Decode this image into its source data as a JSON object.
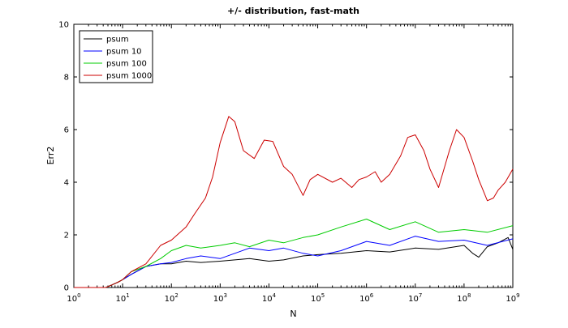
{
  "chart_data": {
    "type": "line",
    "title": "+/- distribution, fast-math",
    "xlabel": "N",
    "ylabel": "Err2",
    "x_scale": "log10",
    "xlim": [
      1,
      1000000000
    ],
    "ylim": [
      0,
      10
    ],
    "yticks": [
      "0",
      "2",
      "4",
      "6",
      "8",
      "10"
    ],
    "xticks": [
      {
        "base": "10",
        "exp": "0"
      },
      {
        "base": "10",
        "exp": "1"
      },
      {
        "base": "10",
        "exp": "2"
      },
      {
        "base": "10",
        "exp": "3"
      },
      {
        "base": "10",
        "exp": "4"
      },
      {
        "base": "10",
        "exp": "5"
      },
      {
        "base": "10",
        "exp": "6"
      },
      {
        "base": "10",
        "exp": "7"
      },
      {
        "base": "10",
        "exp": "8"
      },
      {
        "base": "10",
        "exp": "9"
      }
    ],
    "grid": false,
    "legend_position": "top-left",
    "series": [
      {
        "name": "psum",
        "color": "#000000",
        "x": [
          1,
          4.5,
          6,
          8,
          10,
          15,
          30,
          60,
          100,
          200,
          400,
          1000,
          2000,
          4000,
          10000,
          20000,
          50000,
          100000,
          300000,
          1000000,
          3000000,
          10000000,
          30000000,
          100000000,
          150000000,
          200000000,
          300000000,
          500000000,
          800000000,
          1000000000
        ],
        "y": [
          0,
          0,
          0.1,
          0.2,
          0.3,
          0.5,
          0.8,
          0.9,
          0.9,
          1.0,
          0.95,
          1.0,
          1.05,
          1.1,
          1.0,
          1.05,
          1.2,
          1.25,
          1.3,
          1.4,
          1.35,
          1.5,
          1.45,
          1.6,
          1.3,
          1.15,
          1.55,
          1.7,
          1.9,
          1.45
        ]
      },
      {
        "name": "psum 10",
        "color": "#0000ff",
        "x": [
          1,
          4.5,
          6,
          8,
          10,
          15,
          30,
          60,
          100,
          200,
          400,
          1000,
          2000,
          4000,
          10000,
          20000,
          50000,
          100000,
          300000,
          1000000,
          3000000,
          10000000,
          30000000,
          100000000,
          300000000,
          1000000000
        ],
        "y": [
          0,
          0,
          0.1,
          0.2,
          0.3,
          0.5,
          0.8,
          0.9,
          0.95,
          1.1,
          1.2,
          1.1,
          1.3,
          1.5,
          1.4,
          1.5,
          1.3,
          1.2,
          1.4,
          1.75,
          1.6,
          1.95,
          1.75,
          1.8,
          1.6,
          1.85
        ]
      },
      {
        "name": "psum 100",
        "color": "#00cc00",
        "x": [
          1,
          4.5,
          6,
          8,
          10,
          15,
          30,
          60,
          100,
          200,
          400,
          1000,
          2000,
          4000,
          10000,
          20000,
          50000,
          100000,
          300000,
          1000000,
          3000000,
          10000000,
          30000000,
          100000000,
          300000000,
          1000000000
        ],
        "y": [
          0,
          0,
          0.1,
          0.2,
          0.3,
          0.6,
          0.8,
          1.1,
          1.4,
          1.6,
          1.5,
          1.6,
          1.7,
          1.55,
          1.8,
          1.7,
          1.9,
          2.0,
          2.3,
          2.6,
          2.2,
          2.5,
          2.1,
          2.2,
          2.1,
          2.35
        ]
      },
      {
        "name": "psum 1000",
        "color": "#cc0000",
        "x": [
          1,
          4.5,
          6,
          8,
          10,
          15,
          30,
          60,
          100,
          200,
          300,
          500,
          700,
          1000,
          1500,
          2000,
          3000,
          5000,
          8000,
          12000,
          20000,
          30000,
          50000,
          70000,
          100000,
          200000,
          300000,
          500000,
          700000,
          1000000,
          1500000,
          2000000,
          3000000,
          5000000,
          7000000,
          10000000,
          15000000,
          20000000,
          30000000,
          50000000,
          70000000,
          100000000,
          150000000,
          200000000,
          300000000,
          400000000,
          500000000,
          700000000,
          1000000000
        ],
        "y": [
          0,
          0,
          0.1,
          0.2,
          0.3,
          0.6,
          0.9,
          1.6,
          1.8,
          2.3,
          2.8,
          3.4,
          4.2,
          5.5,
          6.5,
          6.3,
          5.2,
          4.9,
          5.6,
          5.55,
          4.6,
          4.3,
          3.5,
          4.1,
          4.3,
          4.0,
          4.15,
          3.8,
          4.1,
          4.2,
          4.4,
          4.0,
          4.3,
          5.0,
          5.7,
          5.8,
          5.2,
          4.5,
          3.8,
          5.2,
          6.0,
          5.7,
          4.8,
          4.1,
          3.3,
          3.4,
          3.7,
          4.0,
          4.5
        ]
      }
    ]
  }
}
